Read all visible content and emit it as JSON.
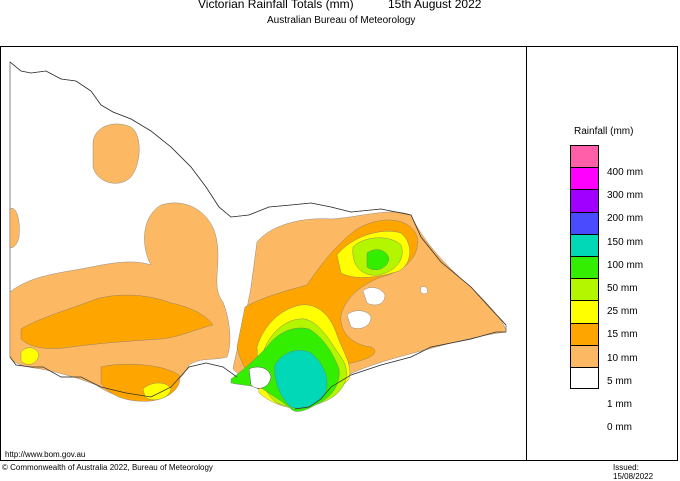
{
  "header": {
    "title": "Victorian Rainfall Totals (mm)",
    "date": "15th August 2022",
    "subtitle": "Australian Bureau of Meteorology"
  },
  "legend": {
    "title": "Rainfall (mm)",
    "entries": [
      {
        "label": "400 mm",
        "color": "#ff5fa8"
      },
      {
        "label": "300 mm",
        "color": "#ff00ff"
      },
      {
        "label": "200 mm",
        "color": "#a000ff"
      },
      {
        "label": "150 mm",
        "color": "#4a4aff"
      },
      {
        "label": "100 mm",
        "color": "#00d8b8"
      },
      {
        "label": "50 mm",
        "color": "#33ee00"
      },
      {
        "label": "25 mm",
        "color": "#b4f500"
      },
      {
        "label": "15 mm",
        "color": "#ffff00"
      },
      {
        "label": "10 mm",
        "color": "#ffa500"
      },
      {
        "label": "5 mm",
        "color": "#fcb863"
      },
      {
        "label": "1 mm",
        "color": "#ffffff"
      },
      {
        "label": "0 mm",
        "color": ""
      }
    ]
  },
  "footer": {
    "url": "http://www.bom.gov.au",
    "copyright": "© Commonwealth of Australia 2022, Bureau of Meteorology",
    "issued": "Issued: 15/08/2022"
  }
}
